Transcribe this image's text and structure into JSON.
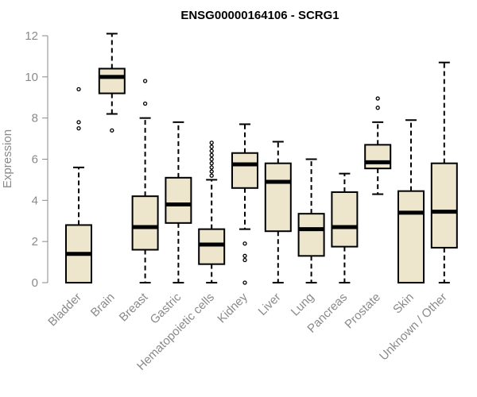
{
  "chart_data": {
    "type": "boxplot",
    "title": "ENSG00000164106 - SCRG1",
    "xlabel": "",
    "ylabel": "Expression",
    "ylim": [
      0,
      12
    ],
    "yticks": [
      0,
      2,
      4,
      6,
      8,
      10,
      12
    ],
    "grid": false,
    "box_color": "#ede6cc",
    "categories": [
      "Bladder",
      "Brain",
      "Breast",
      "Gastric",
      "Hematopoietic cells",
      "Kidney",
      "Liver",
      "Lung",
      "Pancreas",
      "Prostate",
      "Skin",
      "Unknown / Other"
    ],
    "boxes": [
      {
        "name": "Bladder",
        "min": 0,
        "q1": 0,
        "median": 1.4,
        "q3": 2.8,
        "max": 5.6,
        "outliers": [
          7.5,
          7.8,
          9.4
        ]
      },
      {
        "name": "Brain",
        "min": 8.2,
        "q1": 9.2,
        "median": 10.0,
        "q3": 10.4,
        "max": 12.1,
        "outliers": [
          7.4
        ]
      },
      {
        "name": "Breast",
        "min": 0,
        "q1": 1.6,
        "median": 2.7,
        "q3": 4.2,
        "max": 8.0,
        "outliers": [
          8.7,
          9.8
        ]
      },
      {
        "name": "Gastric",
        "min": 0,
        "q1": 2.9,
        "median": 3.8,
        "q3": 5.1,
        "max": 7.8,
        "outliers": []
      },
      {
        "name": "Hematopoietic cells",
        "min": 0,
        "q1": 0.9,
        "median": 1.85,
        "q3": 2.6,
        "max": 5.0,
        "outliers": [
          5.2,
          5.4,
          5.6,
          5.8,
          6.0,
          6.2,
          6.4,
          6.6,
          6.8
        ]
      },
      {
        "name": "Kidney",
        "min": 2.6,
        "q1": 4.6,
        "median": 5.75,
        "q3": 6.3,
        "max": 7.7,
        "outliers": [
          0,
          1.1,
          1.3,
          1.9
        ]
      },
      {
        "name": "Liver",
        "min": 0,
        "q1": 2.5,
        "median": 4.9,
        "q3": 5.8,
        "max": 6.85,
        "outliers": []
      },
      {
        "name": "Lung",
        "min": 0,
        "q1": 1.3,
        "median": 2.6,
        "q3": 3.35,
        "max": 6.0,
        "outliers": []
      },
      {
        "name": "Pancreas",
        "min": 0,
        "q1": 1.75,
        "median": 2.7,
        "q3": 4.4,
        "max": 5.3,
        "outliers": []
      },
      {
        "name": "Prostate",
        "min": 4.3,
        "q1": 5.55,
        "median": 5.85,
        "q3": 6.7,
        "max": 7.8,
        "outliers": [
          8.5,
          8.95
        ]
      },
      {
        "name": "Skin",
        "min": 0,
        "q1": 0,
        "median": 3.4,
        "q3": 4.45,
        "max": 7.9,
        "outliers": []
      },
      {
        "name": "Unknown / Other",
        "min": 0,
        "q1": 1.7,
        "median": 3.45,
        "q3": 5.8,
        "max": 10.7,
        "outliers": []
      }
    ]
  }
}
